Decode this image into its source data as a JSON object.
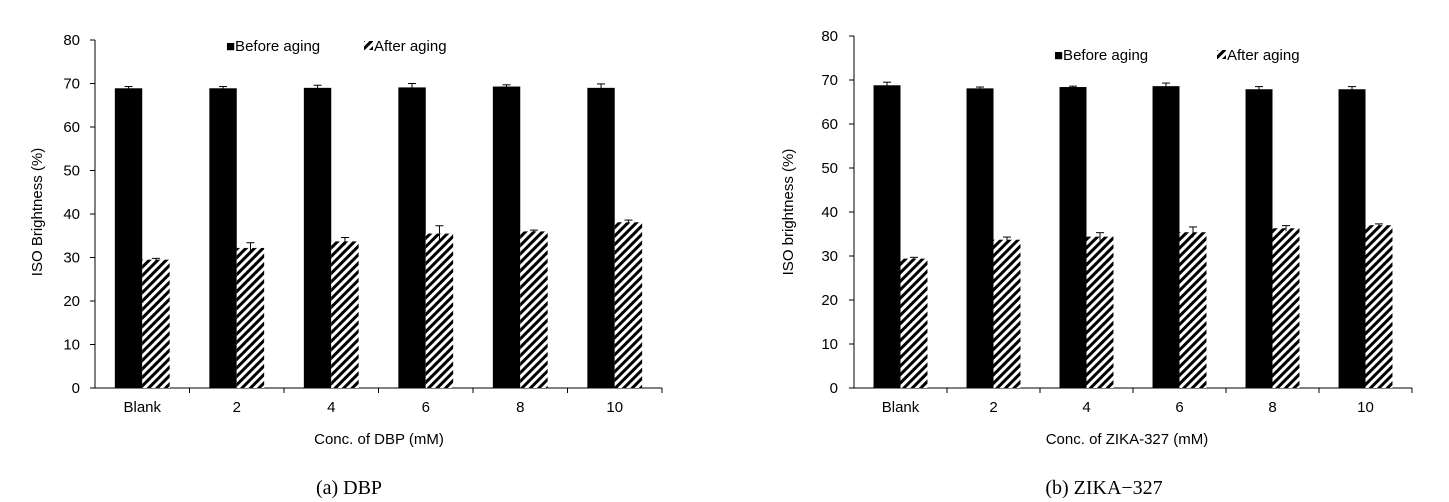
{
  "colors": {
    "before": "#000000",
    "after_stripe": "#000000",
    "after_bg": "#ffffff",
    "axis": "#000000"
  },
  "chart_data": [
    {
      "type": "bar",
      "caption": "(a) DBP",
      "xlabel": "Conc. of DBP (mM)",
      "ylabel": "ISO Brightness (%)",
      "ylim": [
        0,
        80
      ],
      "yticks": [
        0,
        10,
        20,
        30,
        40,
        50,
        60,
        70,
        80
      ],
      "categories": [
        "Blank",
        "2",
        "4",
        "6",
        "8",
        "10"
      ],
      "legend_position": "top-center",
      "series": [
        {
          "name": "Before aging",
          "legend_label": "■Before aging",
          "pattern": "solid",
          "values": [
            68.9,
            68.9,
            69.0,
            69.1,
            69.3,
            69.0
          ],
          "errors": [
            0.4,
            0.4,
            0.6,
            0.9,
            0.4,
            0.9
          ]
        },
        {
          "name": "After aging",
          "legend_label": "After aging",
          "pattern": "hatch",
          "values": [
            29.5,
            32.2,
            33.7,
            35.5,
            36.0,
            38.1
          ],
          "errors": [
            0.3,
            1.2,
            0.9,
            1.8,
            0.3,
            0.5
          ]
        }
      ]
    },
    {
      "type": "bar",
      "caption": "(b) ZIKA−327",
      "xlabel": "Conc. of ZIKA-327  (mM)",
      "ylabel": "ISO brightness (%)",
      "ylim": [
        0,
        80
      ],
      "yticks": [
        0,
        10,
        20,
        30,
        40,
        50,
        60,
        70,
        80
      ],
      "categories": [
        "Blank",
        "2",
        "4",
        "6",
        "8",
        "10"
      ],
      "legend_position": "top-center",
      "series": [
        {
          "name": "Before aging",
          "legend_label": "■Before aging",
          "pattern": "solid",
          "values": [
            68.8,
            68.1,
            68.4,
            68.6,
            67.9,
            67.9
          ],
          "errors": [
            0.7,
            0.3,
            0.2,
            0.7,
            0.6,
            0.6
          ]
        },
        {
          "name": "After aging",
          "legend_label": "After aging",
          "pattern": "hatch",
          "values": [
            29.4,
            33.7,
            34.4,
            35.4,
            36.3,
            37.0
          ],
          "errors": [
            0.3,
            0.6,
            0.9,
            1.2,
            0.6,
            0.3
          ]
        }
      ]
    }
  ]
}
